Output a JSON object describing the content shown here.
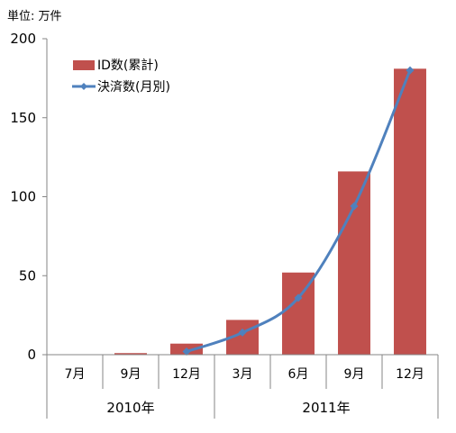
{
  "chart_data": {
    "type": "bar",
    "unit_label": "単位: 万件",
    "categories": [
      "7月",
      "9月",
      "12月",
      "3月",
      "6月",
      "9月",
      "12月"
    ],
    "groups": [
      {
        "label": "2010年",
        "span": [
          0,
          2
        ]
      },
      {
        "label": "2011年",
        "span": [
          3,
          6
        ]
      }
    ],
    "ylim": [
      0,
      200
    ],
    "yticks": [
      0,
      50,
      100,
      150,
      200
    ],
    "series": [
      {
        "name": "ID数(累計)",
        "kind": "bar",
        "color": "#C0504D",
        "values": [
          0,
          1,
          7,
          22,
          52,
          116,
          181
        ]
      },
      {
        "name": "決済数(月別)",
        "kind": "line",
        "color": "#4F81BD",
        "values": [
          null,
          null,
          2,
          14,
          36,
          94,
          180
        ]
      }
    ],
    "grid": false,
    "legend_position": "top-left"
  }
}
